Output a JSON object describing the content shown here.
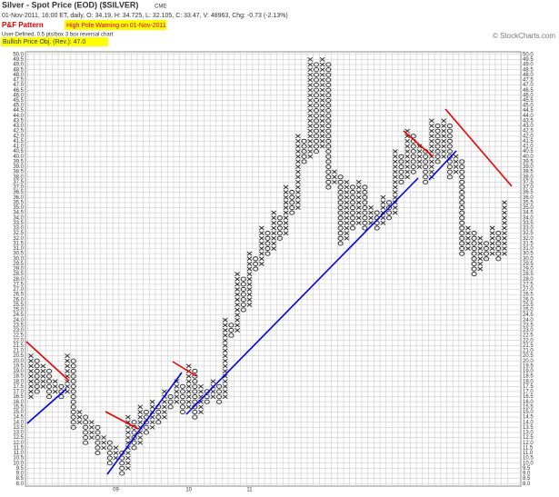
{
  "header": {
    "title": "Silver - Spot Price (EOD) ($SILVER)",
    "exchange": "CME",
    "quote": "01-Nov-2011, 16:00 ET, daily, O: 34.19, H: 34.725, L: 32.105, C: 33.47, V: 48963, Chg: -0.73 (-2.13%)",
    "pattern_label": "P&F Pattern",
    "pattern": "High Pole Warning on 01-Nov-2011",
    "settings": "User-Defined, 0.5 pts/box 3 box reversal chart",
    "objective": "Bullish Price Obj. (Rev.): 47.0",
    "copyright": "© StockCharts.com"
  },
  "chart_data": {
    "type": "pnf",
    "box": 0.5,
    "x_colors": {
      "X": "#222222",
      "O": "#222222"
    },
    "ylim": [
      7.75,
      50.25
    ],
    "yticks": [
      {
        "value": 50,
        "label": "50.0"
      },
      {
        "value": 49.5,
        "label": "49.5"
      },
      {
        "value": 49,
        "label": "49.0"
      },
      {
        "value": 48.5,
        "label": "48.5"
      },
      {
        "value": 48,
        "label": "48.0"
      },
      {
        "value": 47.5,
        "label": "47.5"
      },
      {
        "value": 47,
        "label": "47.0"
      },
      {
        "value": 46.5,
        "label": "46.5"
      },
      {
        "value": 46,
        "label": "46.0"
      },
      {
        "value": 45.5,
        "label": "45.5"
      },
      {
        "value": 45,
        "label": "45.0"
      },
      {
        "value": 44.5,
        "label": "44.5"
      },
      {
        "value": 44,
        "label": "44.0"
      },
      {
        "value": 43.5,
        "label": "43.5"
      },
      {
        "value": 43,
        "label": "43.0"
      },
      {
        "value": 42.5,
        "label": "42.5"
      },
      {
        "value": 42,
        "label": "42.0"
      },
      {
        "value": 41.5,
        "label": "41.5"
      },
      {
        "value": 41,
        "label": "41.0"
      },
      {
        "value": 40.5,
        "label": "40.5"
      },
      {
        "value": 40,
        "label": "40.0"
      },
      {
        "value": 39.5,
        "label": "39.5"
      },
      {
        "value": 39,
        "label": "39.0"
      },
      {
        "value": 38.5,
        "label": "38.5"
      },
      {
        "value": 38,
        "label": "38.0"
      },
      {
        "value": 37.5,
        "label": "37.5"
      },
      {
        "value": 37,
        "label": "37.0"
      },
      {
        "value": 36.5,
        "label": "36.5"
      },
      {
        "value": 36,
        "label": "36.0"
      },
      {
        "value": 35.5,
        "label": "35.5"
      },
      {
        "value": 35,
        "label": "35.0"
      },
      {
        "value": 34.5,
        "label": "34.5"
      },
      {
        "value": 34,
        "label": "34.0"
      },
      {
        "value": 33.5,
        "label": "33.5"
      },
      {
        "value": 33,
        "label": "33.0"
      },
      {
        "value": 32.5,
        "label": "32.5"
      },
      {
        "value": 32,
        "label": "32.0"
      },
      {
        "value": 31.5,
        "label": "31.5"
      },
      {
        "value": 31,
        "label": "31.0"
      },
      {
        "value": 30.5,
        "label": "30.5"
      },
      {
        "value": 30,
        "label": "30.0"
      },
      {
        "value": 29.5,
        "label": "29.5"
      },
      {
        "value": 29,
        "label": "29.0"
      },
      {
        "value": 28.5,
        "label": "28.5"
      },
      {
        "value": 28,
        "label": "28.0"
      },
      {
        "value": 27.5,
        "label": "27.5"
      },
      {
        "value": 27,
        "label": "27.0"
      },
      {
        "value": 26.5,
        "label": "26.5"
      },
      {
        "value": 26,
        "label": "26.0"
      },
      {
        "value": 25.5,
        "label": "25.5"
      },
      {
        "value": 25,
        "label": "25.0"
      },
      {
        "value": 24.5,
        "label": "24.5"
      },
      {
        "value": 24,
        "label": "24.0"
      },
      {
        "value": 23.5,
        "label": "23.5"
      },
      {
        "value": 23,
        "label": "23.0"
      },
      {
        "value": 22.5,
        "label": "22.5"
      },
      {
        "value": 22,
        "label": "22.0"
      },
      {
        "value": 21.5,
        "label": "21.5"
      },
      {
        "value": 21,
        "label": "21.0"
      },
      {
        "value": 20.5,
        "label": "20.5"
      },
      {
        "value": 20,
        "label": "20.0"
      },
      {
        "value": 19.5,
        "label": "19.5"
      },
      {
        "value": 19,
        "label": "19.0"
      },
      {
        "value": 18.5,
        "label": "18.5"
      },
      {
        "value": 18,
        "label": "18.0"
      },
      {
        "value": 17.5,
        "label": "17.5"
      },
      {
        "value": 17,
        "label": "17.0"
      },
      {
        "value": 16.5,
        "label": "16.5"
      },
      {
        "value": 16,
        "label": "16.0"
      },
      {
        "value": 15.5,
        "label": "15.5"
      },
      {
        "value": 15,
        "label": "15.0"
      },
      {
        "value": 14.5,
        "label": "14.5"
      },
      {
        "value": 14,
        "label": "14.0"
      },
      {
        "value": 13.5,
        "label": "13.5"
      },
      {
        "value": 13,
        "label": "13.0"
      },
      {
        "value": 12.5,
        "label": "12.5"
      },
      {
        "value": 12,
        "label": "12.0"
      },
      {
        "value": 11.5,
        "label": "11.5"
      },
      {
        "value": 11,
        "label": "11.0"
      },
      {
        "value": 10.5,
        "label": "10.5"
      },
      {
        "value": 10,
        "label": "10.0"
      },
      {
        "value": 9.5,
        "label": "9.5"
      },
      {
        "value": 9,
        "label": "9.0"
      },
      {
        "value": 8.5,
        "label": "8.5"
      },
      {
        "value": 8,
        "label": "8.0"
      }
    ],
    "year_labels": [
      {
        "column": 14,
        "label": "09"
      },
      {
        "column": 26,
        "label": "10"
      },
      {
        "column": 36,
        "label": "11"
      }
    ],
    "columns": [
      {
        "kind": "X",
        "low": 16.5,
        "high": 20.5
      },
      {
        "kind": "O",
        "low": 17,
        "high": 20
      },
      {
        "kind": "X",
        "low": 17.5,
        "high": 19.5
      },
      {
        "kind": "O",
        "low": 16.5,
        "high": 19
      },
      {
        "kind": "X",
        "low": 17,
        "high": 18
      },
      {
        "kind": "O",
        "low": 16.5,
        "high": 17.5
      },
      {
        "kind": "X",
        "low": 17,
        "high": 20.5
      },
      {
        "kind": "O",
        "low": 13.5,
        "high": 20
      },
      {
        "kind": "X",
        "low": 14,
        "high": 15
      },
      {
        "kind": "O",
        "low": 12,
        "high": 14.5
      },
      {
        "kind": "X",
        "low": 12.5,
        "high": 14
      },
      {
        "kind": "O",
        "low": 11,
        "high": 13.5
      },
      {
        "kind": "X",
        "low": 11.5,
        "high": 12.5
      },
      {
        "kind": "O",
        "low": 10,
        "high": 12
      },
      {
        "kind": "X",
        "low": 10.5,
        "high": 11.5
      },
      {
        "kind": "O",
        "low": 9,
        "high": 11
      },
      {
        "kind": "X",
        "low": 9.5,
        "high": 14.5
      },
      {
        "kind": "O",
        "low": 11.5,
        "high": 14
      },
      {
        "kind": "X",
        "low": 12,
        "high": 15.5
      },
      {
        "kind": "O",
        "low": 13,
        "high": 15
      },
      {
        "kind": "X",
        "low": 13.5,
        "high": 16
      },
      {
        "kind": "O",
        "low": 14,
        "high": 15.5
      },
      {
        "kind": "X",
        "low": 14.5,
        "high": 17
      },
      {
        "kind": "O",
        "low": 15.5,
        "high": 16.5
      },
      {
        "kind": "X",
        "low": 16,
        "high": 18
      },
      {
        "kind": "O",
        "low": 15,
        "high": 17.5
      },
      {
        "kind": "X",
        "low": 15.5,
        "high": 19.5
      },
      {
        "kind": "O",
        "low": 14.5,
        "high": 19
      },
      {
        "kind": "X",
        "low": 15,
        "high": 17.5
      },
      {
        "kind": "O",
        "low": 16,
        "high": 17
      },
      {
        "kind": "X",
        "low": 16.5,
        "high": 18
      },
      {
        "kind": "O",
        "low": 16,
        "high": 17.5
      },
      {
        "kind": "X",
        "low": 16.5,
        "high": 24
      },
      {
        "kind": "O",
        "low": 22.5,
        "high": 23.5
      },
      {
        "kind": "X",
        "low": 23,
        "high": 28.5
      },
      {
        "kind": "O",
        "low": 25,
        "high": 28
      },
      {
        "kind": "X",
        "low": 25.5,
        "high": 30.5
      },
      {
        "kind": "O",
        "low": 29,
        "high": 30
      },
      {
        "kind": "X",
        "low": 29.5,
        "high": 33
      },
      {
        "kind": "O",
        "low": 30.5,
        "high": 32.5
      },
      {
        "kind": "X",
        "low": 31,
        "high": 34.5
      },
      {
        "kind": "O",
        "low": 32,
        "high": 34
      },
      {
        "kind": "X",
        "low": 32.5,
        "high": 37
      },
      {
        "kind": "O",
        "low": 34.5,
        "high": 36.5
      },
      {
        "kind": "X",
        "low": 35,
        "high": 42
      },
      {
        "kind": "O",
        "low": 39.5,
        "high": 41.5
      },
      {
        "kind": "X",
        "low": 40,
        "high": 49.5
      },
      {
        "kind": "O",
        "low": 40.5,
        "high": 49
      },
      {
        "kind": "X",
        "low": 41,
        "high": 49.5
      },
      {
        "kind": "O",
        "low": 37,
        "high": 49
      },
      {
        "kind": "X",
        "low": 37.5,
        "high": 38.5
      },
      {
        "kind": "O",
        "low": 31.5,
        "high": 38
      },
      {
        "kind": "X",
        "low": 32,
        "high": 37.5
      },
      {
        "kind": "O",
        "low": 33,
        "high": 37
      },
      {
        "kind": "X",
        "low": 33.5,
        "high": 37.5
      },
      {
        "kind": "O",
        "low": 33,
        "high": 37
      },
      {
        "kind": "X",
        "low": 33.5,
        "high": 35
      },
      {
        "kind": "O",
        "low": 33,
        "high": 34.5
      },
      {
        "kind": "X",
        "low": 33.5,
        "high": 36
      },
      {
        "kind": "O",
        "low": 34,
        "high": 35.5
      },
      {
        "kind": "X",
        "low": 34.5,
        "high": 40.5
      },
      {
        "kind": "O",
        "low": 37.5,
        "high": 40
      },
      {
        "kind": "X",
        "low": 38,
        "high": 42.5
      },
      {
        "kind": "O",
        "low": 38.5,
        "high": 42
      },
      {
        "kind": "X",
        "low": 39,
        "high": 41
      },
      {
        "kind": "O",
        "low": 37.5,
        "high": 40.5
      },
      {
        "kind": "X",
        "low": 38,
        "high": 43.5
      },
      {
        "kind": "O",
        "low": 39.5,
        "high": 43
      },
      {
        "kind": "X",
        "low": 40,
        "high": 43.5
      },
      {
        "kind": "O",
        "low": 38,
        "high": 43
      },
      {
        "kind": "X",
        "low": 38.5,
        "high": 40
      },
      {
        "kind": "O",
        "low": 30.5,
        "high": 39.5
      },
      {
        "kind": "X",
        "low": 31,
        "high": 33
      },
      {
        "kind": "O",
        "low": 28.5,
        "high": 32.5
      },
      {
        "kind": "X",
        "low": 29,
        "high": 32
      },
      {
        "kind": "O",
        "low": 30,
        "high": 31.5
      },
      {
        "kind": "X",
        "low": 30.5,
        "high": 33
      },
      {
        "kind": "O",
        "low": 30,
        "high": 32.5
      },
      {
        "kind": "X",
        "low": 30.5,
        "high": 35.5
      }
    ]
  }
}
